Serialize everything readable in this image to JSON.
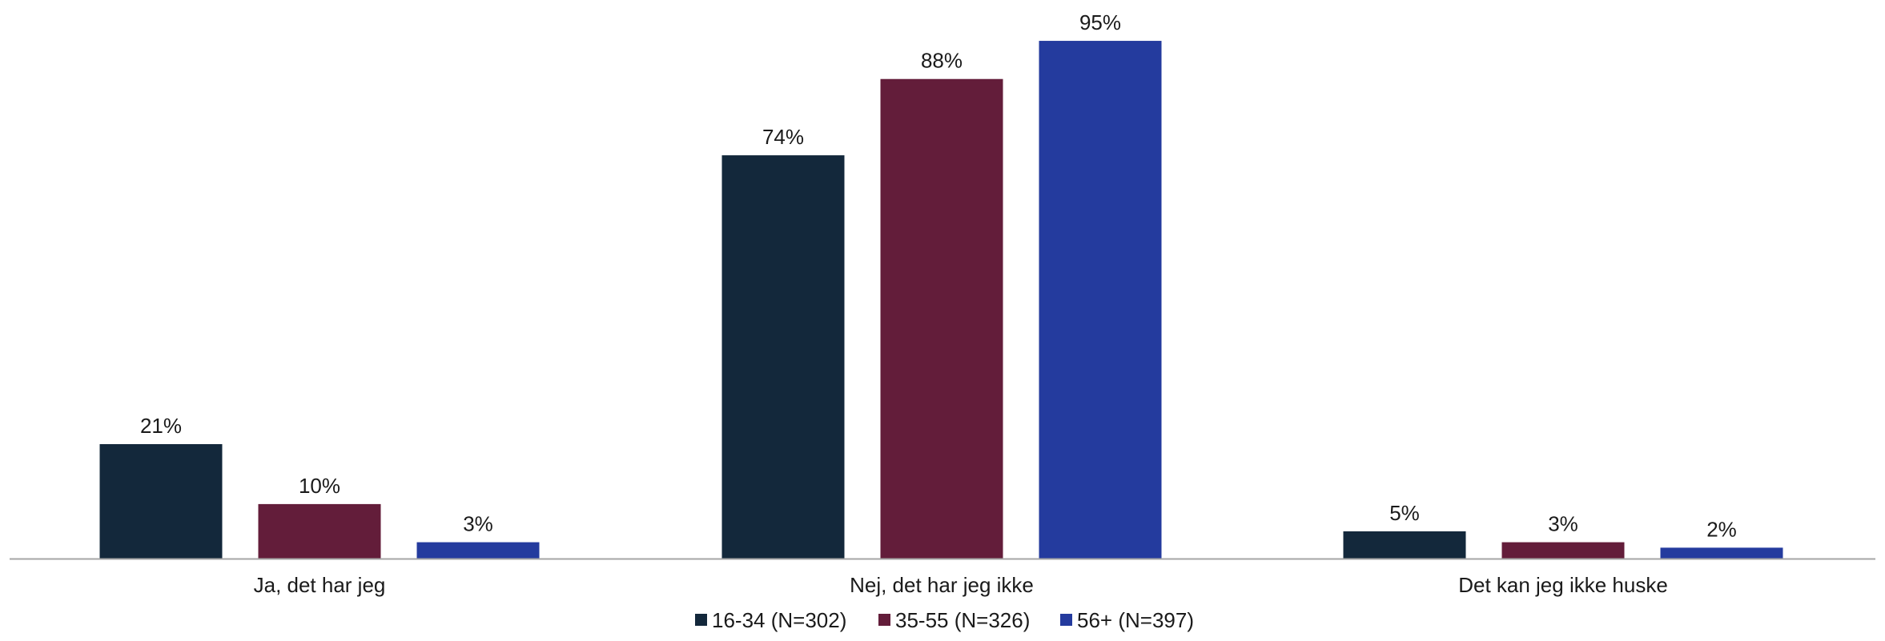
{
  "chart_data": {
    "type": "bar",
    "categories": [
      "Ja, det har jeg",
      "Nej, det har jeg ikke",
      "Det kan jeg ikke huske"
    ],
    "series": [
      {
        "name": "16-34 (N=302)",
        "color": "#13283b",
        "values": [
          21,
          74,
          5
        ],
        "labels": [
          "21%",
          "74%",
          "5%"
        ]
      },
      {
        "name": "35-55 (N=326)",
        "color": "#631d3a",
        "values": [
          10,
          88,
          3
        ],
        "labels": [
          "10%",
          "88%",
          "3%"
        ]
      },
      {
        "name": "56+ (N=397)",
        "color": "#243b9e",
        "values": [
          3,
          95,
          2
        ],
        "labels": [
          "3%",
          "95%",
          "2%"
        ]
      }
    ],
    "value_unit": "%",
    "ylim": [
      0,
      100
    ],
    "grid": false,
    "legend_position": "bottom",
    "baseline_color": "#a6a6a6"
  }
}
